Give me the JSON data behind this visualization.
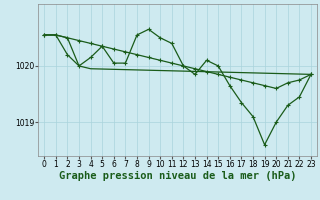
{
  "background_color": "#ceeaf0",
  "grid_color": "#aad4dc",
  "line_color": "#1a5c1a",
  "xlabel": "Graphe pression niveau de la mer (hPa)",
  "xlabel_fontsize": 7.5,
  "xlim": [
    -0.5,
    23.5
  ],
  "ylim": [
    1018.4,
    1021.1
  ],
  "yticks": [
    1019,
    1020
  ],
  "xticks": [
    0,
    1,
    2,
    3,
    4,
    5,
    6,
    7,
    8,
    9,
    10,
    11,
    12,
    13,
    14,
    15,
    16,
    17,
    18,
    19,
    20,
    21,
    22,
    23
  ],
  "tick_fontsize": 5.5,
  "line1_x": [
    0,
    1,
    2,
    3,
    4,
    5,
    6,
    7,
    8,
    9,
    10,
    11,
    12,
    13,
    14,
    15,
    16,
    17,
    18,
    19,
    20,
    21,
    22,
    23
  ],
  "line1_y": [
    1020.55,
    1020.55,
    1020.2,
    1020.0,
    1020.15,
    1020.35,
    1020.05,
    1020.05,
    1020.55,
    1020.65,
    1020.5,
    1020.4,
    1020.0,
    1019.85,
    1020.1,
    1020.0,
    1019.65,
    1019.35,
    1019.1,
    1018.6,
    1019.0,
    1019.3,
    1019.45,
    1019.85
  ],
  "line2_x": [
    0,
    1,
    2,
    3,
    4,
    23
  ],
  "line2_y": [
    1020.55,
    1020.55,
    1020.5,
    1020.0,
    1019.95,
    1019.85
  ],
  "line3_x": [
    0,
    1,
    2,
    3,
    4,
    5,
    6,
    7,
    8,
    9,
    10,
    11,
    12,
    13,
    14,
    15,
    16,
    17,
    18,
    19,
    20,
    21,
    22,
    23
  ],
  "line3_y": [
    1020.55,
    1020.55,
    1020.5,
    1020.45,
    1020.4,
    1020.35,
    1020.3,
    1020.25,
    1020.2,
    1020.15,
    1020.1,
    1020.05,
    1020.0,
    1019.95,
    1019.9,
    1019.85,
    1019.8,
    1019.75,
    1019.7,
    1019.65,
    1019.6,
    1019.7,
    1019.75,
    1019.85
  ]
}
